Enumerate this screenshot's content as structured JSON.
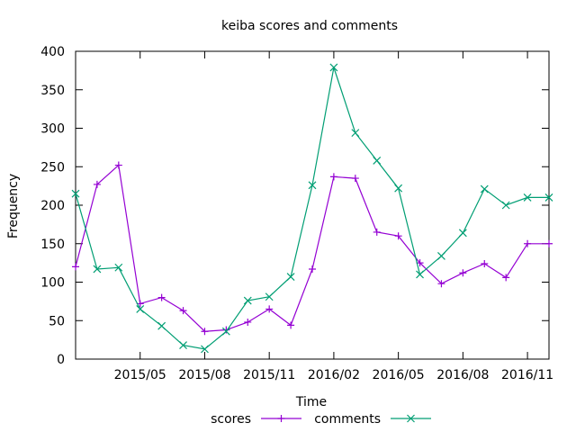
{
  "chart_data": {
    "type": "line",
    "title": "keiba scores and comments",
    "xlabel": "Time",
    "ylabel": "Frequency",
    "ylim": [
      0,
      400
    ],
    "yticks": [
      0,
      50,
      100,
      150,
      200,
      250,
      300,
      350,
      400
    ],
    "xlim": [
      "2015-02",
      "2016-12"
    ],
    "xticks": [
      {
        "label": "2015/05",
        "month": "2015-05"
      },
      {
        "label": "2015/08",
        "month": "2015-08"
      },
      {
        "label": "2015/11",
        "month": "2015-11"
      },
      {
        "label": "2016/02",
        "month": "2016-02"
      },
      {
        "label": "2016/05",
        "month": "2016-05"
      },
      {
        "label": "2016/08",
        "month": "2016-08"
      },
      {
        "label": "2016/11",
        "month": "2016-11"
      }
    ],
    "x": [
      "2015-02",
      "2015-03",
      "2015-04",
      "2015-05",
      "2015-06",
      "2015-07",
      "2015-08",
      "2015-09",
      "2015-10",
      "2015-11",
      "2015-12",
      "2016-01",
      "2016-02",
      "2016-03",
      "2016-04",
      "2016-05",
      "2016-06",
      "2016-07",
      "2016-08",
      "2016-09",
      "2016-10",
      "2016-11",
      "2016-12"
    ],
    "series": [
      {
        "name": "scores",
        "color": "#9400d3",
        "marker": "plus",
        "values": [
          120,
          227,
          252,
          72,
          80,
          63,
          36,
          38,
          48,
          65,
          44,
          117,
          237,
          235,
          165,
          160,
          125,
          98,
          112,
          124,
          106,
          150,
          150
        ]
      },
      {
        "name": "comments",
        "color": "#009e73",
        "marker": "cross",
        "values": [
          215,
          117,
          119,
          65,
          43,
          18,
          13,
          36,
          76,
          81,
          107,
          226,
          379,
          294,
          258,
          222,
          110,
          134,
          164,
          221,
          200,
          210,
          210
        ]
      }
    ],
    "legend": "bottom-center",
    "grid": false
  }
}
